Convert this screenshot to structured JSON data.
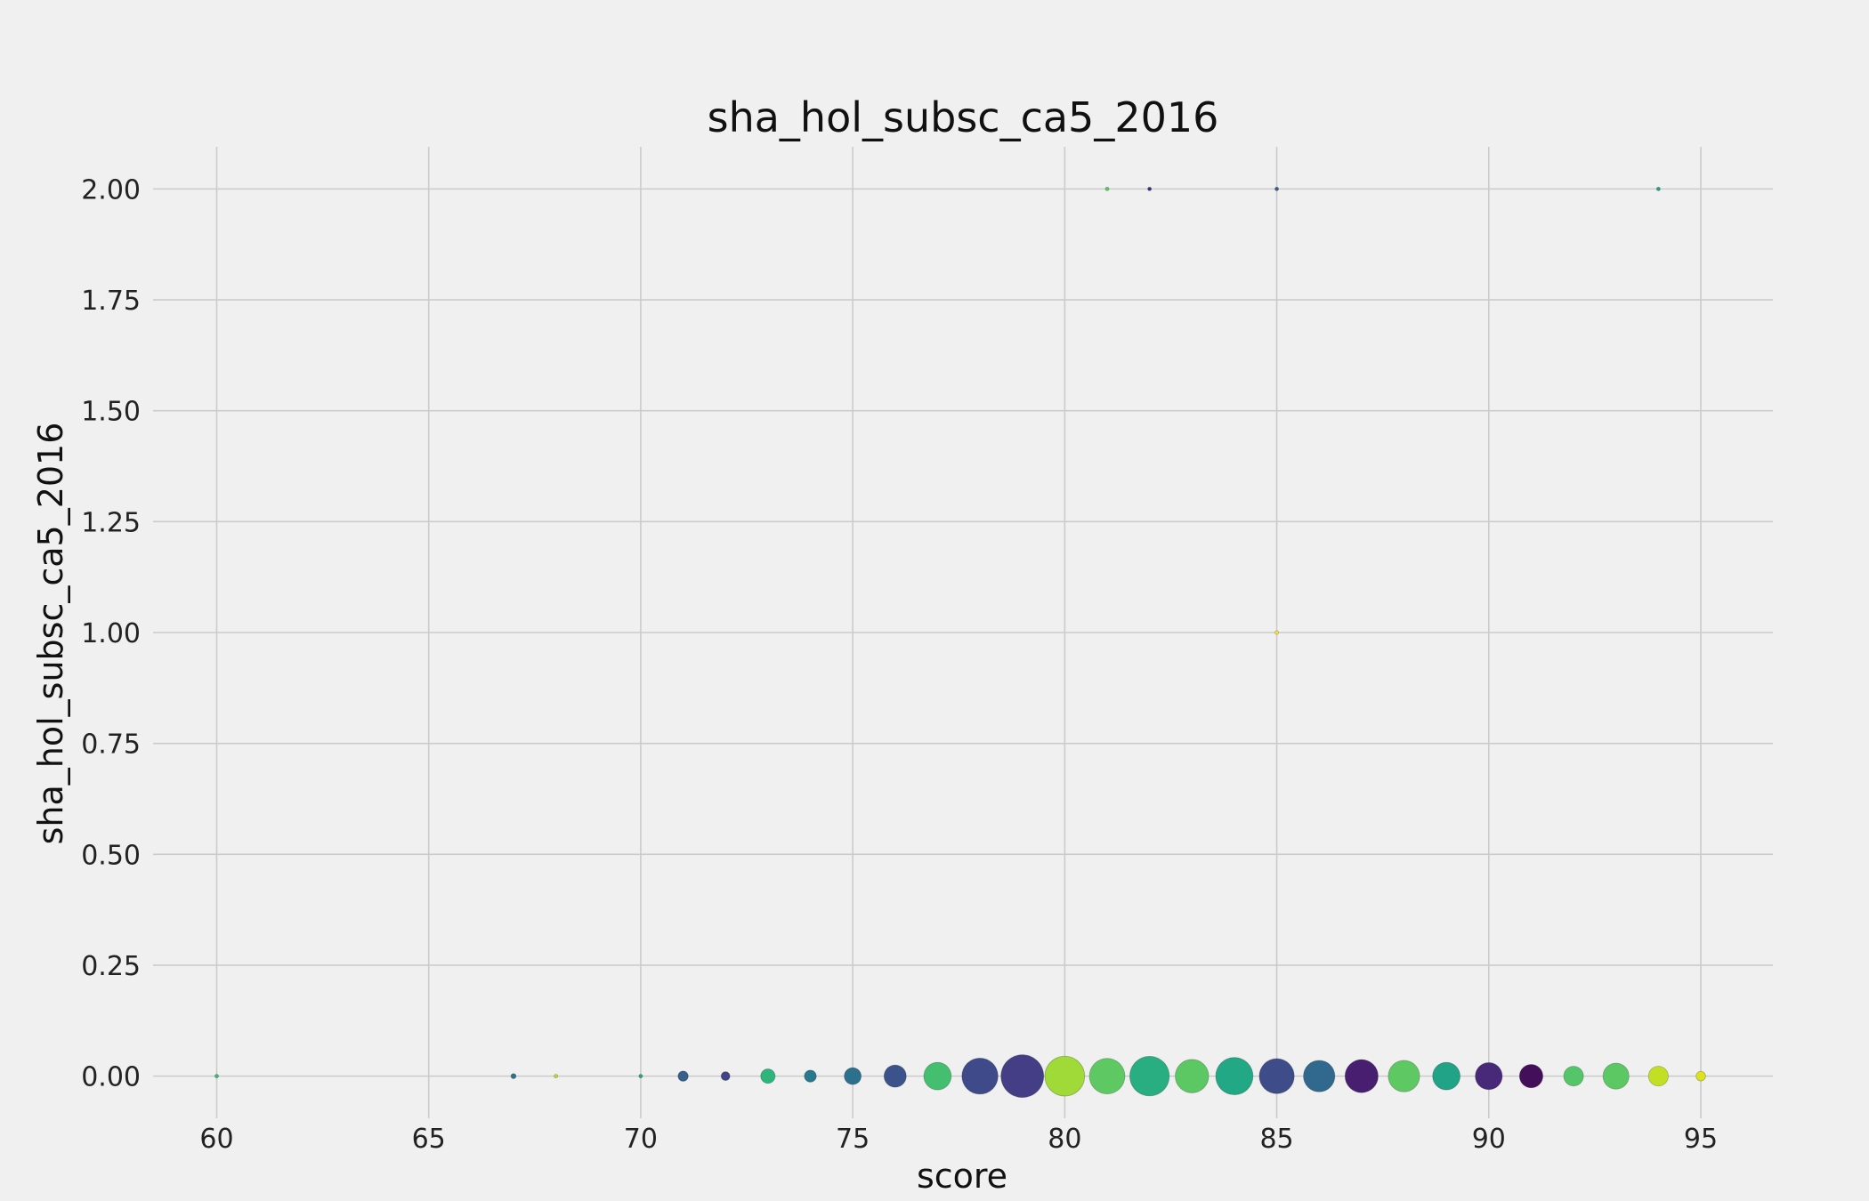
{
  "chart_data": {
    "type": "scatter",
    "title": "sha_hol_subsc_ca5_2016",
    "xlabel": "score",
    "ylabel": "sha_hol_subsc_ca5_2016",
    "xlim": [
      58.5,
      96.7
    ],
    "ylim": [
      -0.095,
      2.095
    ],
    "x_ticks": [
      60,
      65,
      70,
      75,
      80,
      85,
      90,
      95
    ],
    "y_ticks": [
      0.0,
      0.25,
      0.5,
      0.75,
      1.0,
      1.25,
      1.5,
      1.75,
      2.0
    ],
    "x_tick_labels": [
      "60",
      "65",
      "70",
      "75",
      "80",
      "85",
      "90",
      "95"
    ],
    "y_tick_labels": [
      "0.00",
      "0.25",
      "0.50",
      "0.75",
      "1.00",
      "1.25",
      "1.50",
      "1.75",
      "2.00"
    ],
    "grid": true,
    "points": [
      {
        "x": 60,
        "y": 0,
        "size": 1,
        "color": "#3bbb75"
      },
      {
        "x": 67,
        "y": 0,
        "size": 2,
        "color": "#2c718e"
      },
      {
        "x": 68,
        "y": 0,
        "size": 1,
        "color": "#b5de2b"
      },
      {
        "x": 70,
        "y": 0,
        "size": 1,
        "color": "#25a584"
      },
      {
        "x": 71,
        "y": 0,
        "size": 8,
        "color": "#355f8d"
      },
      {
        "x": 72,
        "y": 0,
        "size": 6,
        "color": "#414487"
      },
      {
        "x": 73,
        "y": 0,
        "size": 16,
        "color": "#2fb47c"
      },
      {
        "x": 74,
        "y": 0,
        "size": 11,
        "color": "#2a788e"
      },
      {
        "x": 75,
        "y": 0,
        "size": 22,
        "color": "#2d708e"
      },
      {
        "x": 76,
        "y": 0,
        "size": 38,
        "color": "#3b528b"
      },
      {
        "x": 77,
        "y": 0,
        "size": 58,
        "color": "#44bf70"
      },
      {
        "x": 78,
        "y": 0,
        "size": 100,
        "color": "#3e4a89"
      },
      {
        "x": 79,
        "y": 0,
        "size": 140,
        "color": "#433e85"
      },
      {
        "x": 80,
        "y": 0,
        "size": 122,
        "color": "#a0da39"
      },
      {
        "x": 81,
        "y": 0,
        "size": 97,
        "color": "#5ec962"
      },
      {
        "x": 82,
        "y": 0,
        "size": 120,
        "color": "#28ae80"
      },
      {
        "x": 83,
        "y": 0,
        "size": 86,
        "color": "#5cc863"
      },
      {
        "x": 84,
        "y": 0,
        "size": 107,
        "color": "#22a884"
      },
      {
        "x": 85,
        "y": 0,
        "size": 94,
        "color": "#3e4c8a"
      },
      {
        "x": 86,
        "y": 0,
        "size": 76,
        "color": "#31688e"
      },
      {
        "x": 87,
        "y": 0,
        "size": 84,
        "color": "#481f70"
      },
      {
        "x": 88,
        "y": 0,
        "size": 76,
        "color": "#5ec962"
      },
      {
        "x": 89,
        "y": 0,
        "size": 58,
        "color": "#20a386"
      },
      {
        "x": 90,
        "y": 0,
        "size": 56,
        "color": "#482878"
      },
      {
        "x": 91,
        "y": 0,
        "size": 42,
        "color": "#440f5a"
      },
      {
        "x": 92,
        "y": 0,
        "size": 30,
        "color": "#54c568"
      },
      {
        "x": 93,
        "y": 0,
        "size": 52,
        "color": "#5cc863"
      },
      {
        "x": 94,
        "y": 0,
        "size": 30,
        "color": "#c2df23"
      },
      {
        "x": 95,
        "y": 0,
        "size": 7,
        "color": "#dde318"
      },
      {
        "x": 81,
        "y": 2,
        "size": 1,
        "color": "#5ec962"
      },
      {
        "x": 82,
        "y": 2,
        "size": 1,
        "color": "#3b2f80"
      },
      {
        "x": 85,
        "y": 2,
        "size": 1,
        "color": "#355f8d"
      },
      {
        "x": 94,
        "y": 2,
        "size": 1,
        "color": "#20a386"
      },
      {
        "x": 85,
        "y": 1,
        "size": 1,
        "color": "#fde725"
      }
    ]
  }
}
